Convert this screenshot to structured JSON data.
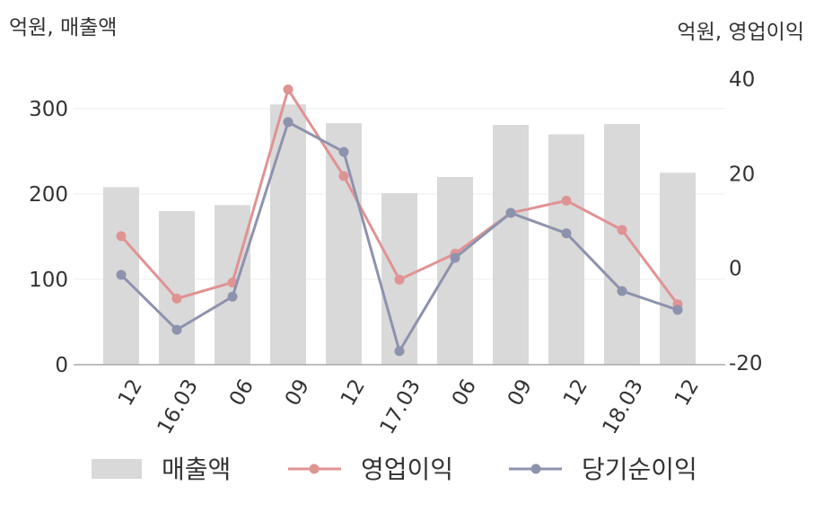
{
  "chart_data": {
    "type": "bar",
    "left_axis_title": "억원, 매출액",
    "right_axis_title": "억원, 영업이익",
    "categories": [
      "12",
      "16.03",
      "06",
      "09",
      "12",
      "17.03",
      "06",
      "09",
      "12",
      "18.03",
      "12"
    ],
    "left_axis": {
      "min": 0,
      "max": 300,
      "ticks": [
        "0",
        "100",
        "200",
        "300"
      ],
      "tick_values": [
        0,
        100,
        200,
        300
      ]
    },
    "right_axis": {
      "min": -20,
      "max": 40,
      "ticks": [
        "-20",
        "0",
        "20",
        "40"
      ],
      "tick_values": [
        -20,
        0,
        20,
        40
      ]
    },
    "grid": true,
    "legend_position": "bottom",
    "series": [
      {
        "name": "매출액",
        "kind": "bar",
        "axis": "left",
        "color": "#d9d9d9",
        "values": [
          208,
          180,
          187,
          305,
          283,
          201,
          220,
          281,
          270,
          282,
          225
        ]
      },
      {
        "name": "영업이익",
        "kind": "line",
        "axis": "right",
        "color": "#e09393",
        "values": [
          6.8,
          -6.4,
          -3.0,
          37.8,
          19.5,
          -2.4,
          3.1,
          11.7,
          14.3,
          8.1,
          -7.6
        ]
      },
      {
        "name": "당기순이익",
        "kind": "line",
        "axis": "right",
        "color": "#8d93ad",
        "values": [
          -1.4,
          -13.0,
          -6.0,
          30.9,
          24.6,
          -17.5,
          2.2,
          11.7,
          7.4,
          -4.8,
          -8.8
        ]
      }
    ]
  }
}
